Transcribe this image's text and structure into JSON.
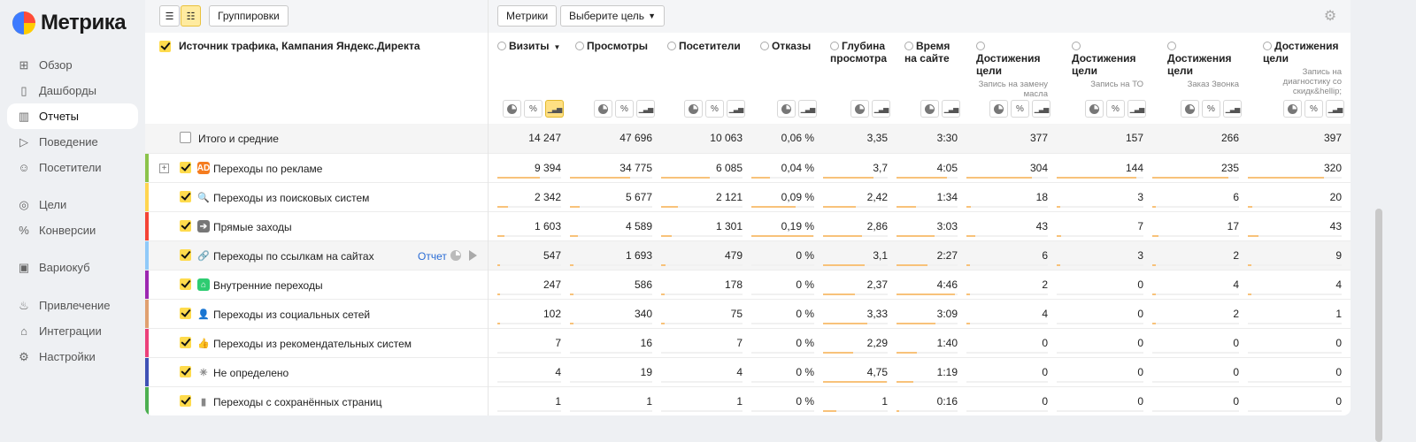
{
  "app": {
    "logo": "Метрика"
  },
  "sidebar": {
    "items": [
      {
        "label": "Обзор",
        "icon": "grid-icon"
      },
      {
        "label": "Дашборды",
        "icon": "dashboards-icon"
      },
      {
        "label": "Отчеты",
        "icon": "reports-icon",
        "active": true
      },
      {
        "label": "Поведение",
        "icon": "play-icon"
      },
      {
        "label": "Посетители",
        "icon": "user-icon"
      },
      {
        "label": "Цели",
        "icon": "target-icon"
      },
      {
        "label": "Конверсии",
        "icon": "percent-icon"
      },
      {
        "label": "Вариокуб",
        "icon": "cube-icon"
      },
      {
        "label": "Привлечение",
        "icon": "flame-icon"
      },
      {
        "label": "Интеграции",
        "icon": "puzzle-icon"
      },
      {
        "label": "Настройки",
        "icon": "gear-icon"
      }
    ]
  },
  "toolbar": {
    "groupings_label": "Группировки",
    "metrics_label": "Метрики",
    "goal_select_label": "Выберите цель"
  },
  "table": {
    "dimension_header": "Источник трафика, Кампания Яндекс.Директа",
    "columns": [
      {
        "title": "Визиты",
        "sub": "",
        "sort": "▼",
        "tools": [
          "pie",
          "%",
          "bar"
        ],
        "active_tool": "bar"
      },
      {
        "title": "Просмотры",
        "sub": "",
        "tools": [
          "pie",
          "%",
          "bar"
        ]
      },
      {
        "title": "Посетители",
        "sub": "",
        "tools": [
          "pie",
          "%",
          "bar"
        ]
      },
      {
        "title": "Отказы",
        "sub": "",
        "tools": [
          "pie",
          "bar"
        ]
      },
      {
        "title": "Глубина просмотра",
        "sub": "",
        "tools": [
          "pie",
          "bar"
        ]
      },
      {
        "title": "Время на сайте",
        "sub": "",
        "tools": [
          "pie",
          "bar"
        ]
      },
      {
        "title": "Достижения цели",
        "sub": "Запись на замену масла",
        "tools": [
          "pie",
          "%",
          "bar"
        ]
      },
      {
        "title": "Достижения цели",
        "sub": "Запись на ТО",
        "tools": [
          "pie",
          "%",
          "bar"
        ]
      },
      {
        "title": "Достижения цели",
        "sub": "Заказ Звонка",
        "tools": [
          "pie",
          "%",
          "bar"
        ]
      },
      {
        "title": "Достижения цели",
        "sub": "Запись на диагностику со скидк&hellip;",
        "tools": [
          "pie",
          "%",
          "bar"
        ]
      }
    ],
    "total": {
      "label": "Итого и средние",
      "values": [
        "14 247",
        "47 696",
        "10 063",
        "0,06 %",
        "3,35",
        "3:30",
        "377",
        "157",
        "266",
        "397"
      ]
    },
    "rows": [
      {
        "label": "Переходы по рекламе",
        "icon": "ad-icon",
        "icon_text": "AD",
        "icon_color": "#f57c1f",
        "stripe": "#8bc34a",
        "expandable": true,
        "values": [
          "9 394",
          "34 775",
          "6 085",
          "0,04 %",
          "3,7",
          "4:05",
          "304",
          "144",
          "235",
          "320"
        ],
        "bars": [
          0.66,
          0.73,
          0.6,
          0.3,
          0.78,
          0.82,
          0.8,
          0.92,
          0.88,
          0.81
        ]
      },
      {
        "label": "Переходы из поисковых систем",
        "icon": "search-icon",
        "icon_text": "🔍",
        "icon_color": "transparent",
        "stripe": "#ffd54f",
        "values": [
          "2 342",
          "5 677",
          "2 121",
          "0,09 %",
          "2,42",
          "1:34",
          "18",
          "3",
          "6",
          "20"
        ],
        "bars": [
          0.16,
          0.12,
          0.21,
          0.7,
          0.5,
          0.32,
          0.05,
          0.02,
          0.02,
          0.05
        ]
      },
      {
        "label": "Прямые заходы",
        "icon": "direct-icon",
        "icon_text": "➔",
        "icon_color": "#777",
        "stripe": "#f44336",
        "values": [
          "1 603",
          "4 589",
          "1 301",
          "0,19 %",
          "2,86",
          "3:03",
          "43",
          "7",
          "17",
          "43"
        ],
        "bars": [
          0.11,
          0.1,
          0.13,
          0.98,
          0.6,
          0.62,
          0.11,
          0.05,
          0.07,
          0.11
        ]
      },
      {
        "label": "Переходы по ссылкам на сайтах",
        "icon": "link-icon",
        "icon_text": "🔗",
        "icon_color": "transparent",
        "stripe": "#90caf9",
        "highlight": true,
        "report_link": "Отчет",
        "values": [
          "547",
          "1 693",
          "479",
          "0 %",
          "3,1",
          "2:27",
          "6",
          "3",
          "2",
          "9"
        ],
        "bars": [
          0.04,
          0.04,
          0.05,
          0.0,
          0.65,
          0.5,
          0.02,
          0.02,
          0.01,
          0.02
        ]
      },
      {
        "label": "Внутренние переходы",
        "icon": "home-icon",
        "icon_text": "⌂",
        "icon_color": "#2ecc71",
        "stripe": "#9c27b0",
        "values": [
          "247",
          "586",
          "178",
          "0 %",
          "2,37",
          "4:46",
          "2",
          "0",
          "4",
          "4"
        ],
        "bars": [
          0.02,
          0.01,
          0.02,
          0.0,
          0.49,
          0.95,
          0.01,
          0.0,
          0.02,
          0.01
        ]
      },
      {
        "label": "Переходы из социальных сетей",
        "icon": "social-icon",
        "icon_text": "👤",
        "icon_color": "transparent",
        "stripe": "#e0a070",
        "values": [
          "102",
          "340",
          "75",
          "0 %",
          "3,33",
          "3:09",
          "4",
          "0",
          "2",
          "1"
        ],
        "bars": [
          0.01,
          0.01,
          0.01,
          0.0,
          0.69,
          0.64,
          0.01,
          0.0,
          0.01,
          0.0
        ]
      },
      {
        "label": "Переходы из рекомендательных систем",
        "icon": "thumbs-up-icon",
        "icon_text": "👍",
        "icon_color": "transparent",
        "stripe": "#ec407a",
        "values": [
          "7",
          "16",
          "7",
          "0 %",
          "2,29",
          "1:40",
          "0",
          "0",
          "0",
          "0"
        ],
        "bars": [
          0.0,
          0.0,
          0.0,
          0.0,
          0.47,
          0.34,
          0.0,
          0.0,
          0.0,
          0.0
        ]
      },
      {
        "label": "Не определено",
        "icon": "spinner-icon",
        "icon_text": "✳",
        "icon_color": "transparent",
        "stripe": "#3f51b5",
        "values": [
          "4",
          "19",
          "4",
          "0 %",
          "4,75",
          "1:19",
          "0",
          "0",
          "0",
          "0"
        ],
        "bars": [
          0.0,
          0.0,
          0.0,
          0.0,
          0.98,
          0.27,
          0.0,
          0.0,
          0.0,
          0.0
        ]
      },
      {
        "label": "Переходы с сохранённых страниц",
        "icon": "page-icon",
        "icon_text": "▮",
        "icon_color": "transparent",
        "stripe": "#4caf50",
        "values": [
          "1",
          "1",
          "1",
          "0 %",
          "1",
          "0:16",
          "0",
          "0",
          "0",
          "0"
        ],
        "bars": [
          0.0,
          0.0,
          0.0,
          0.0,
          0.2,
          0.05,
          0.0,
          0.0,
          0.0,
          0.0
        ]
      }
    ]
  }
}
